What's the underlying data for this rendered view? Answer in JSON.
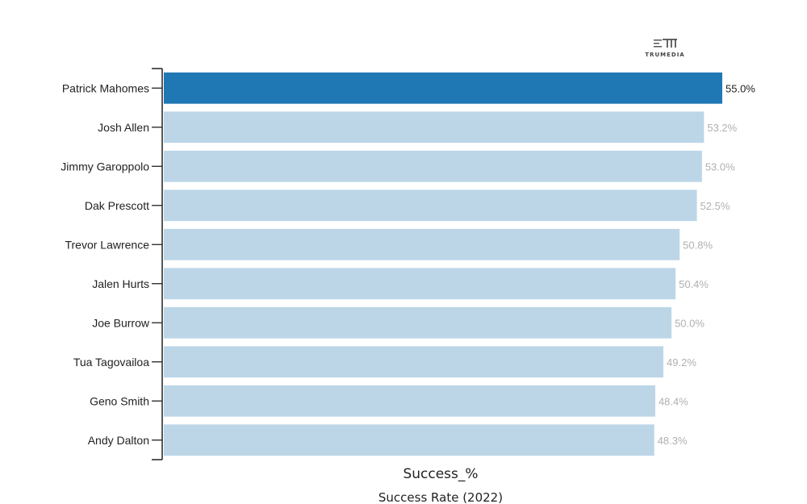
{
  "logo": {
    "text": "TRUMEDIA"
  },
  "colors": {
    "highlight": "#1f77b4",
    "default_bar": "#bcd6e8",
    "highlight_label": "#222222",
    "default_label": "#b0b0b0",
    "axis": "#222222"
  },
  "chart_data": {
    "type": "bar",
    "orientation": "horizontal",
    "title": "Success Rate (2022)",
    "xlabel": "Success_%",
    "ylabel": "",
    "categories": [
      "Patrick Mahomes",
      "Josh Allen",
      "Jimmy Garoppolo",
      "Dak Prescott",
      "Trevor Lawrence",
      "Jalen Hurts",
      "Joe Burrow",
      "Tua Tagovailoa",
      "Geno Smith",
      "Andy Dalton"
    ],
    "values": [
      55.0,
      53.2,
      53.0,
      52.5,
      50.8,
      50.4,
      50.0,
      49.2,
      48.4,
      48.3
    ],
    "value_labels": [
      "55.0%",
      "53.2%",
      "53.0%",
      "52.5%",
      "50.8%",
      "50.4%",
      "50.0%",
      "49.2%",
      "48.4%",
      "48.3%"
    ],
    "highlighted": [
      "Patrick Mahomes"
    ],
    "xlim": [
      0,
      55.0
    ],
    "grid": false,
    "legend": "none"
  }
}
